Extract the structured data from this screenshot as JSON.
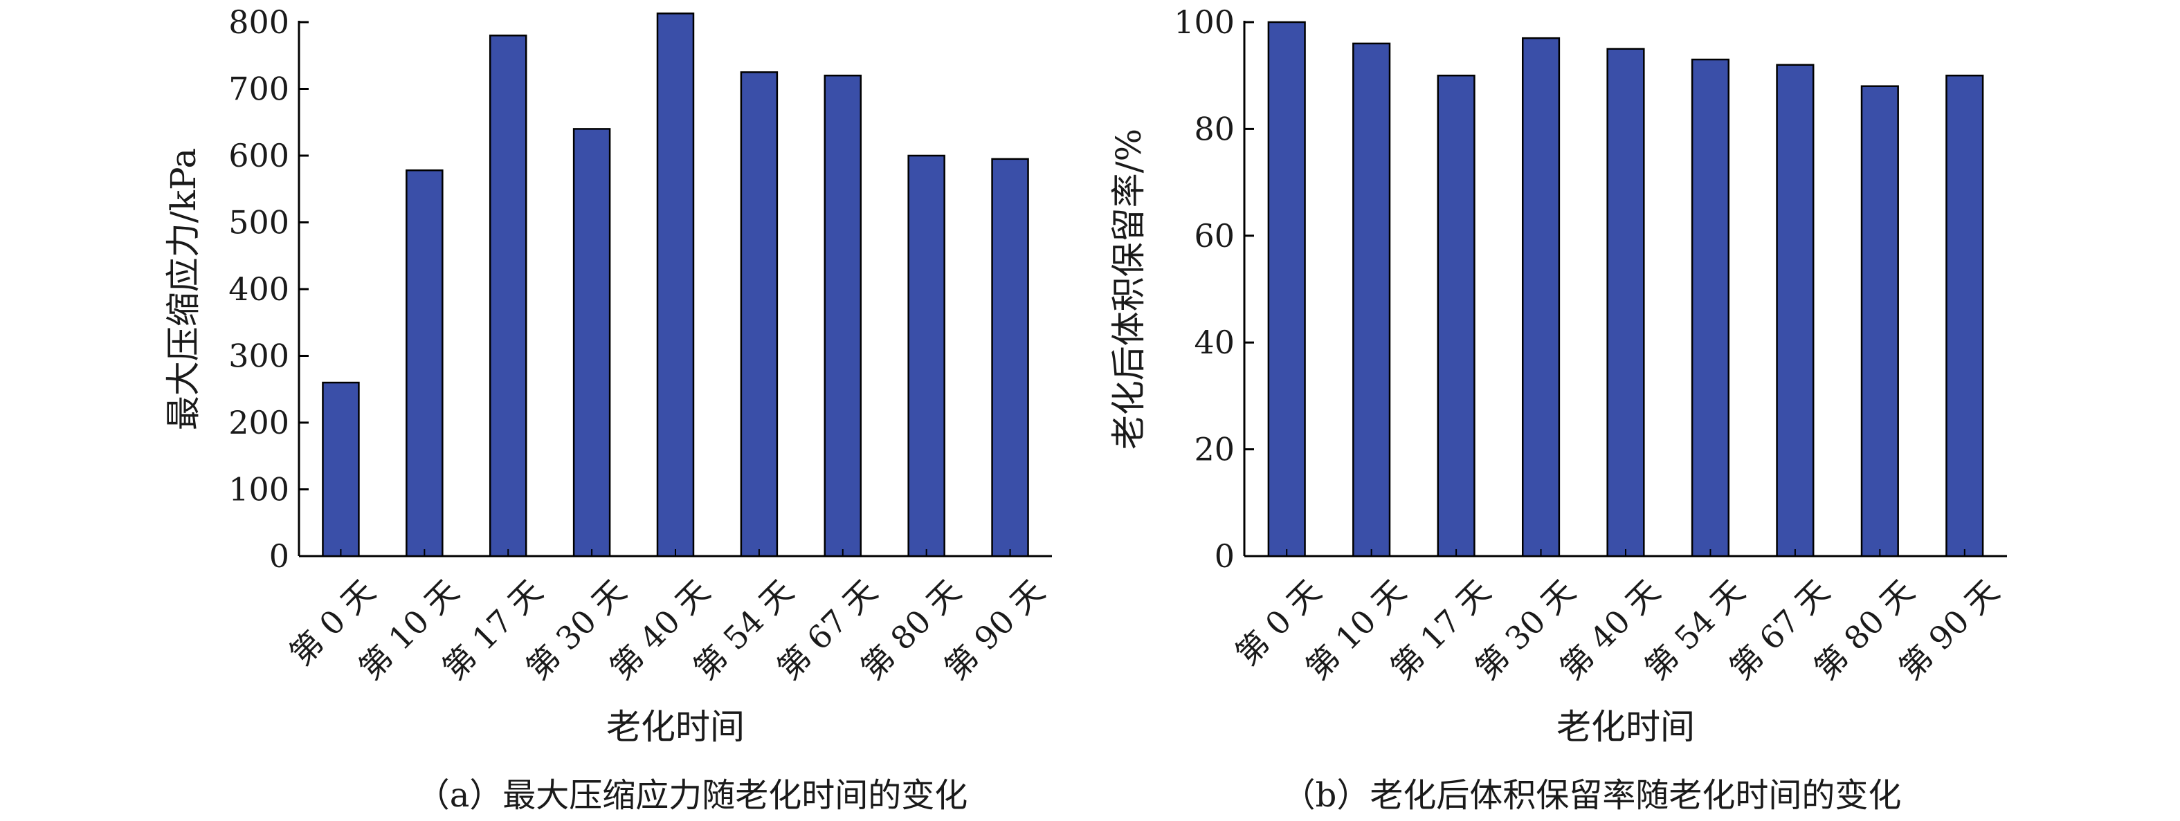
{
  "colors": {
    "bar": "#3a4fa8",
    "bar_stroke": "#000000",
    "axis": "#000000",
    "text": "#1a1a1a"
  },
  "captions": {
    "a": "（a）最大压缩应力随老化时间的变化",
    "b": "（b）老化后体积保留率随老化时间的变化"
  },
  "chart_data": [
    {
      "type": "bar",
      "categories": [
        "第 0 天",
        "第 10 天",
        "第 17 天",
        "第 30 天",
        "第 40 天",
        "第 54 天",
        "第 67 天",
        "第 80 天",
        "第 90 天"
      ],
      "values": [
        260,
        578,
        780,
        640,
        813,
        725,
        720,
        600,
        595
      ],
      "xlabel": "老化时间",
      "ylabel": "最大压缩应力/kPa",
      "ylim": [
        0,
        800
      ],
      "yticks": [
        0,
        100,
        200,
        300,
        400,
        500,
        600,
        700,
        800
      ],
      "grid": false,
      "legend": "none"
    },
    {
      "type": "bar",
      "categories": [
        "第 0 天",
        "第 10 天",
        "第 17 天",
        "第 30 天",
        "第 40 天",
        "第 54 天",
        "第 67 天",
        "第 80 天",
        "第 90 天"
      ],
      "values": [
        100,
        96,
        90,
        97,
        95,
        93,
        92,
        88,
        90
      ],
      "xlabel": "老化时间",
      "ylabel": "老化后体积保留率/%",
      "ylim": [
        0,
        100
      ],
      "yticks": [
        0,
        20,
        40,
        60,
        80,
        100
      ],
      "grid": false,
      "legend": "none"
    }
  ]
}
